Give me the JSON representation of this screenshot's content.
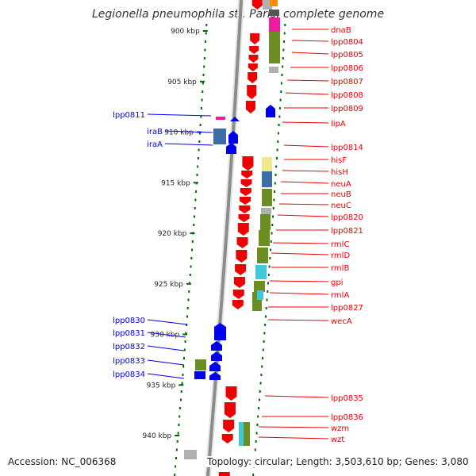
{
  "title": "Legionella pneumophila str. Paris, complete genome",
  "footer": {
    "accession": "Accession: NC_006368",
    "summary": "Topology: circular; Length: 3,503,610 bp; Genes: 3,080"
  },
  "colors": {
    "minus_strand": "#ee0000",
    "plus_strand": "#0000ee",
    "tick": "#006600",
    "axis": "#8c8c8c",
    "cog_olive": "#6b8e23",
    "cog_teal": "#40c8d8",
    "cog_steel": "#3a6ea5",
    "cog_magenta": "#ee1aa0",
    "cog_yellow": "#f0e68c",
    "cog_grey": "#b0b0b0"
  },
  "kbp_labels": [
    {
      "kbp": 900,
      "label": "900 kbp"
    },
    {
      "kbp": 905,
      "label": "905 kbp"
    },
    {
      "kbp": 910,
      "label": "910 kbp"
    },
    {
      "kbp": 915,
      "label": "915 kbp"
    },
    {
      "kbp": 920,
      "label": "920 kbp"
    },
    {
      "kbp": 925,
      "label": "925 kbp"
    },
    {
      "kbp": 930,
      "label": "930 kbp"
    },
    {
      "kbp": 935,
      "label": "935 kbp"
    },
    {
      "kbp": 940,
      "label": "940 kbp"
    }
  ],
  "right_labels": [
    "dnaB",
    "lpp0804",
    "lpp0805",
    "lpp0806",
    "lpp0807",
    "lpp0808",
    "lpp0809",
    "lipA",
    "lpp0814",
    "hisF",
    "hisH",
    "neuA",
    "neuB",
    "neuC",
    "lpp0820",
    "lpp0821",
    "rmlC",
    "rmlD",
    "rmlB",
    "gpi",
    "rmlA",
    "lpp0827",
    "wecA",
    "lpp0835",
    "lpp0836",
    "wzm",
    "wzt"
  ],
  "left_labels": [
    "lpp0811",
    "iraB",
    "iraA",
    "lpp0830",
    "lpp0831",
    "lpp0832",
    "lpp0833",
    "lpp0834"
  ]
}
